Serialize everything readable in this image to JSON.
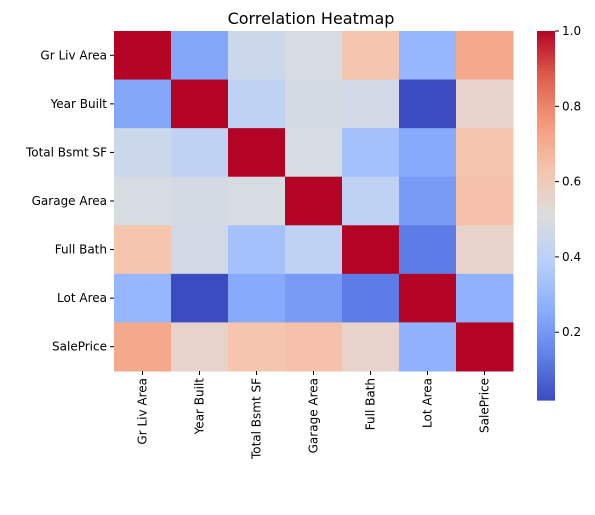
{
  "chart_data": {
    "type": "heatmap",
    "title": "Correlation Heatmap",
    "xlabel": "",
    "ylabel": "",
    "rows": [
      "Gr Liv Area",
      "Year Built",
      "Total Bsmt SF",
      "Garage Area",
      "Full Bath",
      "Lot Area",
      "SalePrice"
    ],
    "columns": [
      "Gr Liv Area",
      "Year Built",
      "Total Bsmt SF",
      "Garage Area",
      "Full Bath",
      "Lot Area",
      "SalePrice"
    ],
    "values": [
      [
        1.0,
        0.24,
        0.45,
        0.49,
        0.63,
        0.29,
        0.71
      ],
      [
        0.24,
        1.0,
        0.41,
        0.48,
        0.47,
        0.02,
        0.56
      ],
      [
        0.45,
        0.41,
        1.0,
        0.49,
        0.33,
        0.25,
        0.63
      ],
      [
        0.49,
        0.48,
        0.49,
        1.0,
        0.41,
        0.21,
        0.64
      ],
      [
        0.63,
        0.47,
        0.33,
        0.41,
        1.0,
        0.13,
        0.56
      ],
      [
        0.29,
        0.02,
        0.25,
        0.21,
        0.13,
        1.0,
        0.27
      ],
      [
        0.71,
        0.56,
        0.63,
        0.64,
        0.56,
        0.27,
        1.0
      ]
    ],
    "colormap": "coolwarm",
    "vmin": 0.02,
    "vmax": 1.0,
    "colorbar_ticks": [
      "0.2",
      "0.4",
      "0.6",
      "0.8",
      "1.0"
    ],
    "colorbar_tick_values": [
      0.2,
      0.4,
      0.6,
      0.8,
      1.0
    ],
    "grid": false
  }
}
